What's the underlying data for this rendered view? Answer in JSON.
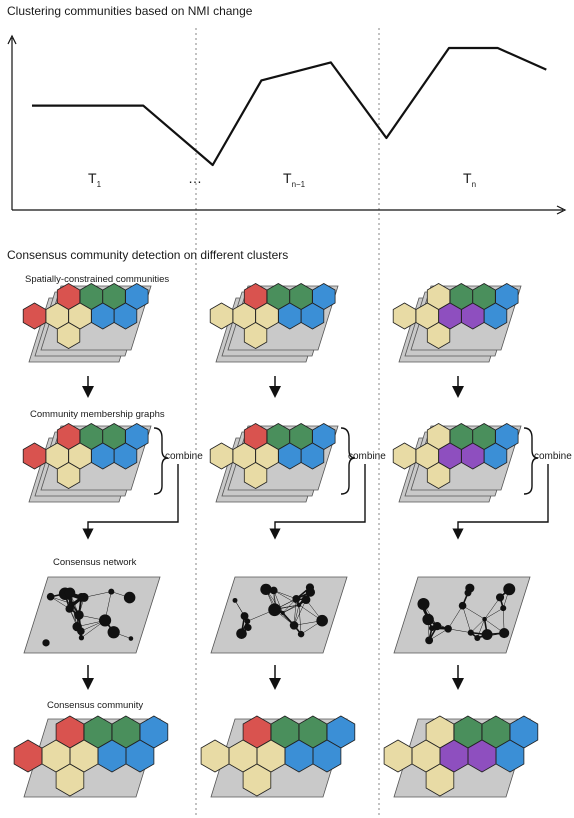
{
  "top_panel": {
    "title": "Clustering communities based on NMI change",
    "segments": [
      {
        "label": "T",
        "sub": "1"
      },
      {
        "label": "…",
        "sub": ""
      },
      {
        "label": "T",
        "sub": "n−1"
      },
      {
        "label": "T",
        "sub": "n"
      }
    ]
  },
  "bottom_panel": {
    "title": "Consensus community detection on different clusters",
    "row_labels": {
      "spatial": "Spatially-constrained communities",
      "membership": "Community membership graphs",
      "consensus_network": "Consensus network",
      "consensus_community": "Consensus community"
    },
    "combine_label": "combine"
  },
  "colors": {
    "red": "#d9534f",
    "green": "#4a8f5c",
    "blue": "#3b8fd6",
    "tan": "#e8dba5",
    "purple": "#8e4fbf",
    "panel_gray": "#c9c9c9"
  },
  "chart_data": {
    "type": "line",
    "title": "Clustering communities based on NMI change",
    "xlabel": "",
    "ylabel": "",
    "grid": false,
    "series": [
      {
        "x": [
          0,
          1.6,
          2.6,
          3.3,
          4.3,
          5.1,
          6.0,
          6.7,
          7.4
        ],
        "values": [
          0.58,
          0.58,
          0.25,
          0.72,
          0.82,
          0.4,
          0.9,
          0.9,
          0.78
        ]
      }
    ],
    "ylim": [
      0,
      1
    ]
  }
}
